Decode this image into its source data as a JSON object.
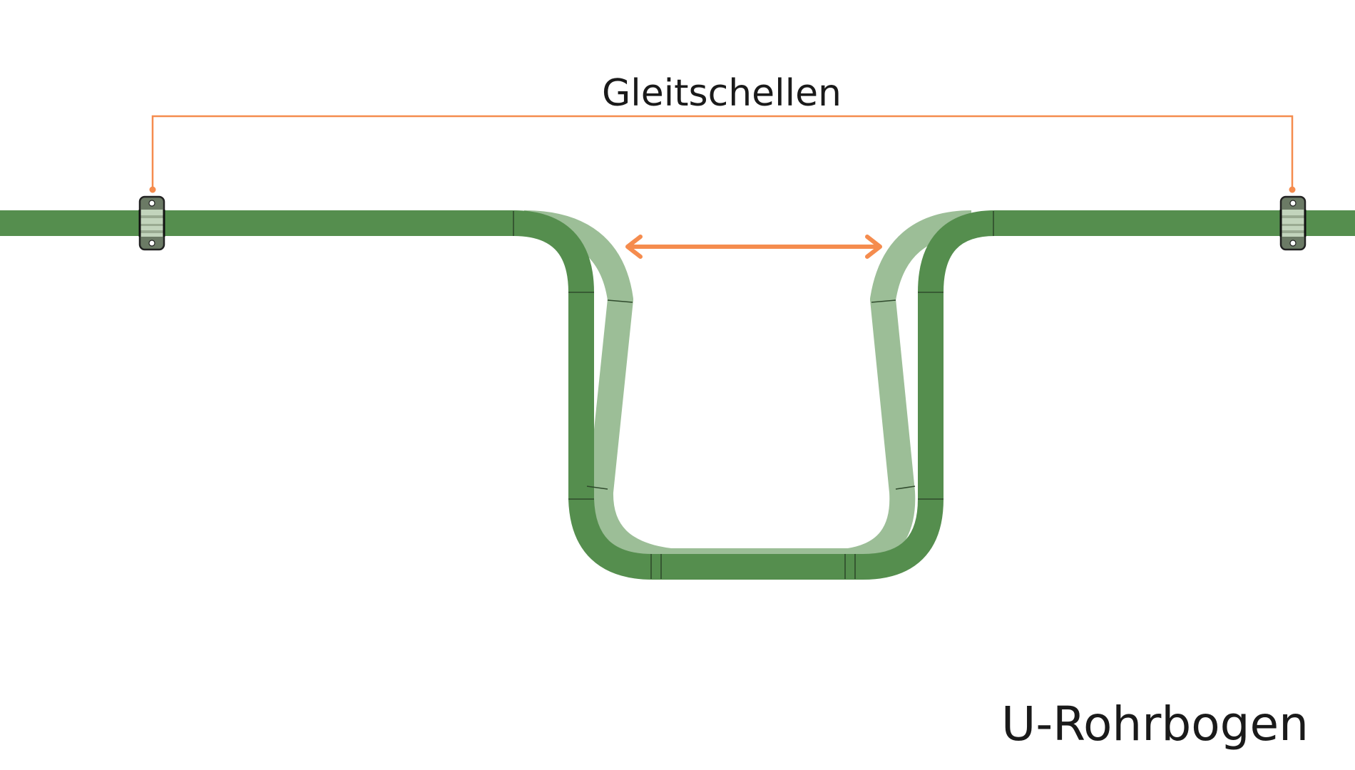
{
  "labels": {
    "clamps": "Gleitschellen",
    "title": "U-Rohrbogen"
  },
  "colors": {
    "pipe": "#558e4e",
    "pipe_ghost": "#9cbe97",
    "accent": "#f58c4e",
    "clamp_body": "#6b7a65",
    "clamp_band": "#c2d4bc",
    "background": "#ffffff"
  }
}
